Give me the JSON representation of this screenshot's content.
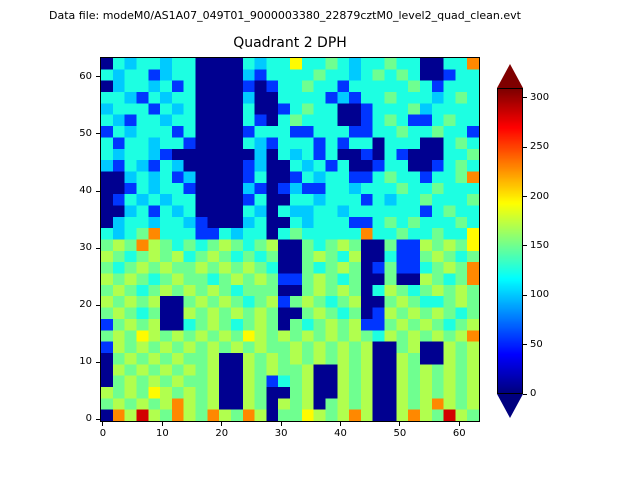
{
  "header": {
    "data_file_label": "Data file: modeM0/AS1A07_049T01_9000003380_22879cztM0_level2_quad_clean.evt"
  },
  "chart_data": {
    "type": "heatmap",
    "title": "Quadrant 2 DPH",
    "colormap": "jet",
    "vmin": 0,
    "vmax": 310,
    "x_range": [
      -0.5,
      63.5
    ],
    "y_range": [
      -0.5,
      63.5
    ],
    "x_ticks": [
      0,
      10,
      20,
      30,
      40,
      50,
      60
    ],
    "y_ticks": [
      0,
      10,
      20,
      30,
      40,
      50,
      60
    ],
    "colorbar": {
      "ticks": [
        0,
        50,
        100,
        150,
        200,
        250,
        300
      ],
      "extend": "both"
    },
    "resolution_note": "32x32 downsampled estimate of the 64x64 detector plane histogram; row 0 = top (y=63), values in counts",
    "value_key": {
      "n": 5,
      "b": 55,
      "c": 100,
      "C": 125,
      "g": 150,
      "G": 170,
      "y": 195,
      "o": 230,
      "r": 285
    },
    "rows": [
      "nCcCCcCC nnnnCcCC yCCgCcCC gCCnnCCo",
      "CcCCbcCC nnnncbCC CCgCCcCg CgCnnbCC",
      "ncCCcCbC nnnnbnbC CgCCbCCC CCgCbCCC",
      "CCcbCcCC nnnncnnC CCCbcbCC gCCCcCgC",
      "cCCCbCcC nnnnCnnb CgCCnnbC CCgcCCCC",
      "CcbCCcCC nnnnCbnC gCCCnnbC gCbbCgCC",
      "bCcCCCbC nnnnbCCC bbCCCbbC CgCCgCCb",
      "CbCCcCCb nnnnCcbC CCbCbCCn CCCnnCgC",
      "CcCCcbnn nnnnncnC cCbCnnbn CbnnnCCg",
      "cbCcbCcn nnnnbcnn CcCbCnnb CCnnbCgC",
      "nncCcCbc nnnnbCnn bCcCCbbC gCCbCCgo",
      "nnbCcCCb nnnncbnb cbbCCcCC CgCCgCCC",
      "nbCcCcCC nnnnbCnn CCcCCCbC cCCgCCCg",
      "nncCbCcC nnnnCcnC ccCCcCCC CCCbCgCC",
      "ncCCcCCc bnnncCnn CcCCCbbC gCgCCCgC",
      "CcCgoCCC bbCcCCnC gCCCCCoC CgCCgCCy",
      "gGgoGgCg CgGgCgGn ngCgGgnn gbbGgGgy",
      "GgCgGgGC gGgCgCgn ngGgCGnn CbbgGgCg",
      "gCgGgGgg GgGgGgCn ngCgGgnb gbbCgGgo",
      "GgGgCgGg gCgGgGgb bgGgCgnn gnnGgCgo",
      "gGgCgGgG gGgCgggn ngGgGgnC GgCgGgGg",
      "GgGgGnng GgGgCgGb gGgCgGnn gGgCCgGg",
      "gGgCgnnG gGgGgGgn ngGgCgnb GgGgGgCg",
      "bgGgGnnC gGgCgGgn gCgGgGbb gGgGgCgG",
      "gGgyGgGg GgGgyGgG gGgGgGgC GgGgGgGo",
      "bGgGgGgG gGgGgGgg GgGgGgGn ngGnnGgG",
      "ngGgGgGg gGnnGgGg GgGgGgGn nGgnnGgG",
      "nGgGgGgG gGnnGgGg gGnnGgGn nGgGgGgG",
      "ngGgGgGg gGnnGgbC gGnnGgGn nGgGgGgG",
      "GgGgyGgG gGnnGgnn gGnnGgGn nGgGgGgG",
      "gGgGgGoG gGnnGgnG gGngGgGn nGgGoGgG",
      "noGrGgoG goGgoGng gyGgGoGn nGoGgrGg"
    ]
  }
}
